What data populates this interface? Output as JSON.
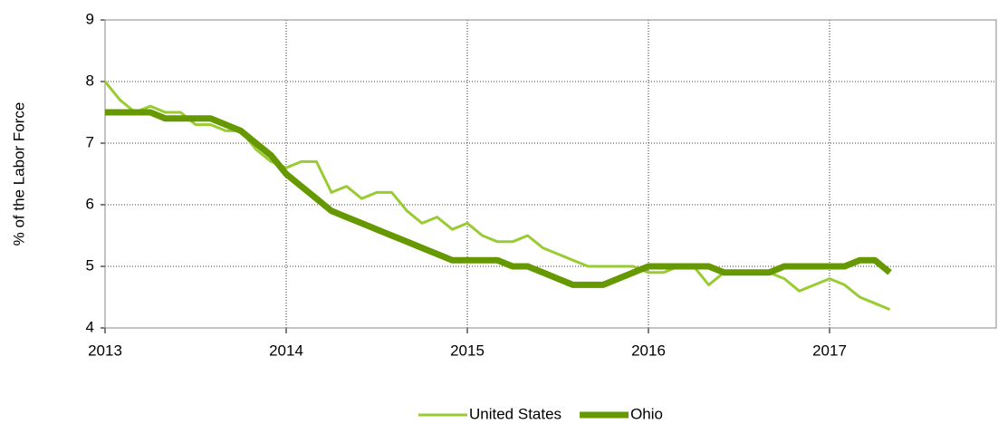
{
  "chart_data": {
    "type": "line",
    "y_label": "% of the Labor Force",
    "x": [
      2013,
      2013.083,
      2013.167,
      2013.25,
      2013.333,
      2013.417,
      2013.5,
      2013.583,
      2013.667,
      2013.75,
      2013.833,
      2013.917,
      2014,
      2014.083,
      2014.167,
      2014.25,
      2014.333,
      2014.417,
      2014.5,
      2014.583,
      2014.667,
      2014.75,
      2014.833,
      2014.917,
      2015,
      2015.083,
      2015.167,
      2015.25,
      2015.333,
      2015.417,
      2015.5,
      2015.583,
      2015.667,
      2015.75,
      2015.833,
      2015.917,
      2016,
      2016.083,
      2016.167,
      2016.25,
      2016.333,
      2016.417,
      2016.5,
      2016.583,
      2016.667,
      2016.75,
      2016.833,
      2016.917,
      2017,
      2017.083,
      2017.167,
      2017.25,
      2017.333
    ],
    "series": [
      {
        "name": "United States",
        "color": "#99cc33",
        "width": 3,
        "values": [
          8.0,
          7.7,
          7.5,
          7.6,
          7.5,
          7.5,
          7.3,
          7.3,
          7.2,
          7.2,
          6.9,
          6.7,
          6.6,
          6.7,
          6.7,
          6.2,
          6.3,
          6.1,
          6.2,
          6.2,
          5.9,
          5.7,
          5.8,
          5.6,
          5.7,
          5.5,
          5.4,
          5.4,
          5.5,
          5.3,
          5.2,
          5.1,
          5.0,
          5.0,
          5.0,
          5.0,
          4.9,
          4.9,
          5.0,
          5.0,
          4.7,
          4.9,
          4.9,
          4.9,
          4.9,
          4.8,
          4.6,
          4.7,
          4.8,
          4.7,
          4.5,
          4.4,
          4.3
        ]
      },
      {
        "name": "Ohio",
        "color": "#669900",
        "width": 7,
        "values": [
          7.5,
          7.5,
          7.5,
          7.5,
          7.4,
          7.4,
          7.4,
          7.4,
          7.3,
          7.2,
          7.0,
          6.8,
          6.5,
          6.3,
          6.1,
          5.9,
          5.8,
          5.7,
          5.6,
          5.5,
          5.4,
          5.3,
          5.2,
          5.1,
          5.1,
          5.1,
          5.1,
          5.0,
          5.0,
          4.9,
          4.8,
          4.7,
          4.7,
          4.7,
          4.8,
          4.9,
          5.0,
          5.0,
          5.0,
          5.0,
          5.0,
          4.9,
          4.9,
          4.9,
          4.9,
          5.0,
          5.0,
          5.0,
          5.0,
          5.0,
          5.1,
          5.1,
          4.9
        ]
      }
    ],
    "xlim": [
      2013,
      2017.92
    ],
    "xticks": [
      2013,
      2014,
      2015,
      2016,
      2017
    ],
    "ylim": [
      4,
      9
    ],
    "yticks": [
      4,
      5,
      6,
      7,
      8,
      9
    ],
    "grid": true,
    "legend": "bottom"
  }
}
